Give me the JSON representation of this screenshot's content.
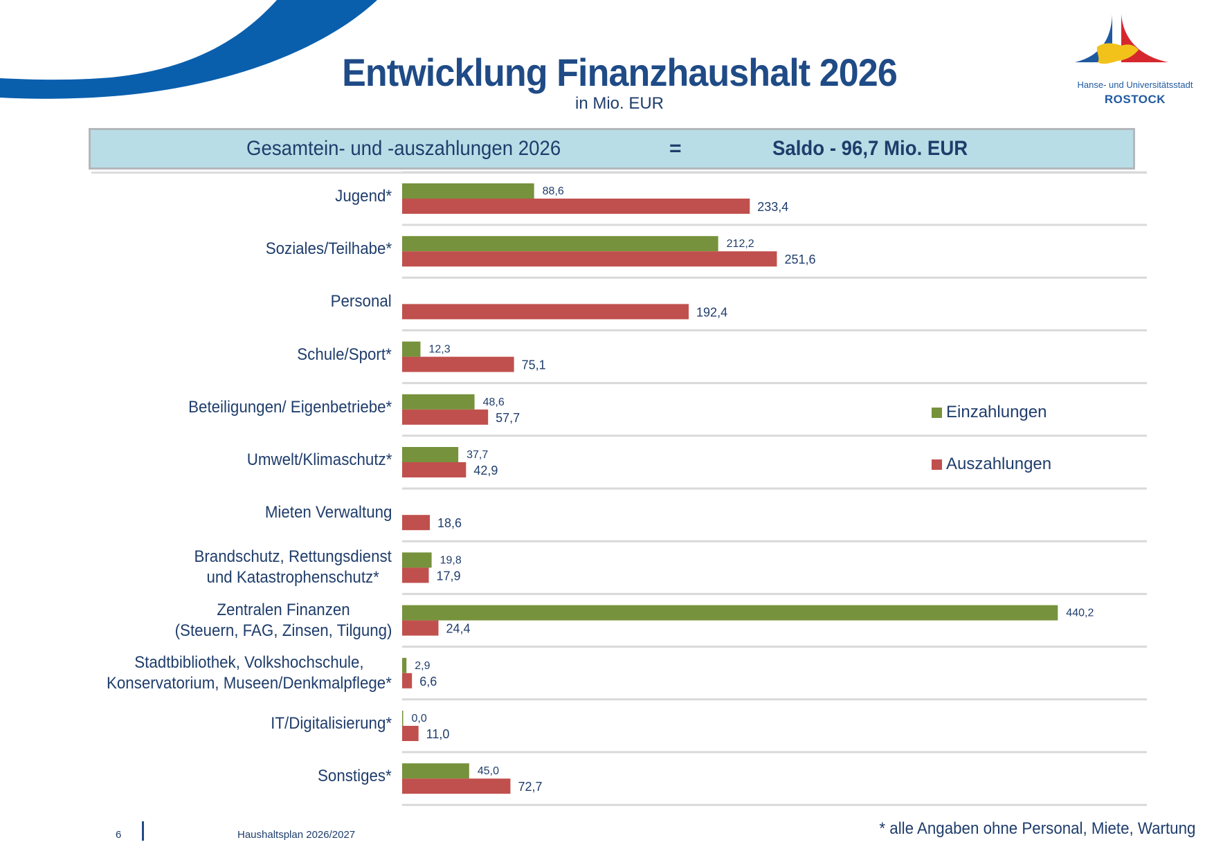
{
  "header": {
    "title": "Entwicklung Finanzhaushalt 2026",
    "subtitle": "in Mio. EUR"
  },
  "logo": {
    "city_line": "Hanse- und Universitätsstadt",
    "name": "ROSTOCK"
  },
  "banner": {
    "left_text": "Gesamtein- und -auszahlungen 2026",
    "equals": "=",
    "right_text": "Saldo - 96,7 Mio. EUR"
  },
  "colors": {
    "einzahlungen": "#76923c",
    "auszahlungen": "#c0504d",
    "text": "#1f3d6b",
    "title": "#1f4b86",
    "banner_bg": "#b8dde6",
    "swoosh": "#0a5fad",
    "gridline": "#d9d9d9"
  },
  "chart_data": {
    "type": "bar",
    "orientation": "horizontal",
    "title": "Entwicklung Finanzhaushalt 2026",
    "subtitle": "in Mio. EUR",
    "xlabel": "",
    "ylabel": "",
    "xlim": [
      0,
      440.2
    ],
    "grid": "horizontal separators",
    "legend_position": "right",
    "categories": [
      "Jugend*",
      "Soziales/Teilhabe*",
      "Personal",
      "Schule/Sport*",
      "Beteiligungen/ Eigenbetriebe*",
      "Umwelt/Klimaschutz*",
      "Mieten Verwaltung",
      "Brandschutz, Rettungsdienst\nund Katastrophenschutz*",
      "Zentralen Finanzen\n(Steuern, FAG, Zinsen, Tilgung)",
      "Stadtbibliothek, Volkshochschule,\nKonservatorium, Museen/Denkmalpflege*",
      "IT/Digitalisierung*",
      "Sonstiges*"
    ],
    "series": [
      {
        "name": "Einzahlungen",
        "values": [
          88.6,
          212.2,
          null,
          12.3,
          48.6,
          37.7,
          null,
          19.8,
          440.2,
          2.9,
          0.0,
          45.0
        ],
        "labels": [
          "88,6",
          "212,2",
          null,
          "12,3",
          "48,6",
          "37,7",
          null,
          "19,8",
          "440,2",
          "2,9",
          "0,0",
          "45,0"
        ]
      },
      {
        "name": "Auszahlungen",
        "values": [
          233.4,
          251.6,
          192.4,
          75.1,
          57.7,
          42.9,
          18.6,
          17.9,
          24.4,
          6.6,
          11.0,
          72.7
        ],
        "labels": [
          "233,4",
          "251,6",
          "192,4",
          "75,1",
          "57,7",
          "42,9",
          "18,6",
          "17,9",
          "24,4",
          "6,6",
          "11,0",
          "72,7"
        ]
      }
    ]
  },
  "legend": [
    {
      "label": "Einzahlungen"
    },
    {
      "label": "Auszahlungen"
    }
  ],
  "footer": {
    "page_number": "6",
    "document": "Haushaltsplan 2026/2027",
    "footnote": "* alle Angaben ohne Personal, Miete, Wartung"
  }
}
